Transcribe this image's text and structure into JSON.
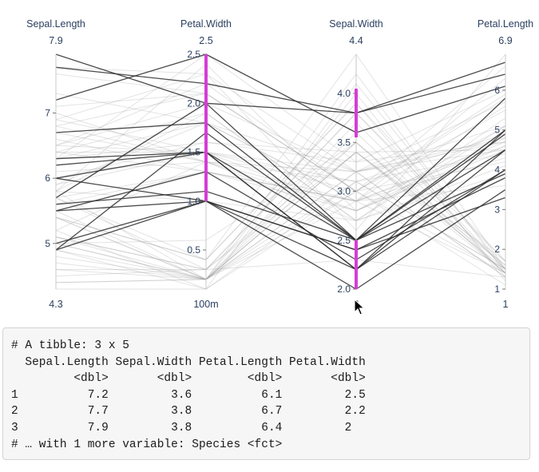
{
  "chart_data": {
    "type": "parallel-coordinates",
    "dimensions": [
      {
        "name": "Sepal.Length",
        "range": [
          4.3,
          7.9
        ],
        "top_label": "7.9",
        "bottom_label": "4.3",
        "ticks": [
          5,
          6,
          7
        ],
        "tick_labels": [
          "5",
          "6",
          "7"
        ],
        "constraint": null
      },
      {
        "name": "Petal.Width",
        "range": [
          0.1,
          2.5
        ],
        "top_label": "2.5",
        "bottom_label": "100m",
        "ticks": [
          0.5,
          1.0,
          1.5,
          2.0,
          2.5
        ],
        "tick_labels": [
          "0.5",
          "1.0",
          "1.5",
          "2.0",
          "2.5"
        ],
        "constraint": [
          [
            1.0,
            2.5
          ]
        ]
      },
      {
        "name": "Sepal.Width",
        "range": [
          2.0,
          4.4
        ],
        "top_label": "4.4",
        "bottom_label": "2",
        "ticks": [
          2.0,
          2.5,
          3.0,
          3.5,
          4.0
        ],
        "tick_labels": [
          "2.0",
          "2.5",
          "3.0",
          "3.5",
          "4.0"
        ],
        "constraint": [
          [
            2.0,
            2.5
          ],
          [
            3.55,
            4.05
          ]
        ]
      },
      {
        "name": "Petal.Length",
        "range": [
          1,
          6.9
        ],
        "top_label": "6.9",
        "bottom_label": "1",
        "ticks": [
          1,
          2,
          3,
          4,
          5,
          6
        ],
        "tick_labels": [
          "1",
          "2",
          "3",
          "4",
          "5",
          "6"
        ],
        "constraint": null
      }
    ],
    "highlight_color": "#d63dd6"
  },
  "console": {
    "lines": [
      "# A tibble: 3 x 5",
      "  Sepal.Length Sepal.Width Petal.Length Petal.Width",
      "         <dbl>       <dbl>        <dbl>       <dbl>",
      "1          7.2         3.6          6.1         2.5",
      "2          7.7         3.8          6.7         2.2",
      "3          7.9         3.8          6.4         2  ",
      "# … with 1 more variable: Species <fct>"
    ]
  }
}
